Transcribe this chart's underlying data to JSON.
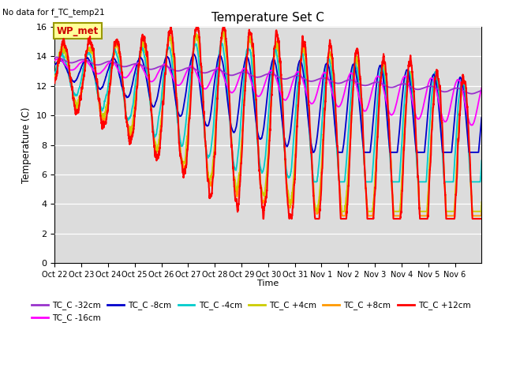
{
  "title": "Temperature Set C",
  "subtitle": "No data for f_TC_temp21",
  "xlabel": "Time",
  "ylabel": "Temperature (C)",
  "ylim": [
    0,
    16
  ],
  "yticks": [
    0,
    2,
    4,
    6,
    8,
    10,
    12,
    14,
    16
  ],
  "background_color": "#dcdcdc",
  "series_colors": {
    "TC_C -32cm": "#9933cc",
    "TC_C -16cm": "#ff00ff",
    "TC_C -8cm": "#0000cc",
    "TC_C -4cm": "#00cccc",
    "TC_C +4cm": "#cccc00",
    "TC_C +8cm": "#ff9900",
    "TC_C +12cm": "#ff0000"
  },
  "xtick_labels": [
    "Oct 22",
    "Oct 23",
    "Oct 24",
    "Oct 25",
    "Oct 26",
    "Oct 27",
    "Oct 28",
    "Oct 29",
    "Oct 30",
    "Oct 31",
    "Nov 1",
    "Nov 2",
    "Nov 3",
    "Nov 4",
    "Nov 5",
    "Nov 6"
  ],
  "wp_met_label": "WP_met",
  "wp_met_color": "#cc0000",
  "wp_met_bg": "#ffff99",
  "wp_met_border": "#999900"
}
